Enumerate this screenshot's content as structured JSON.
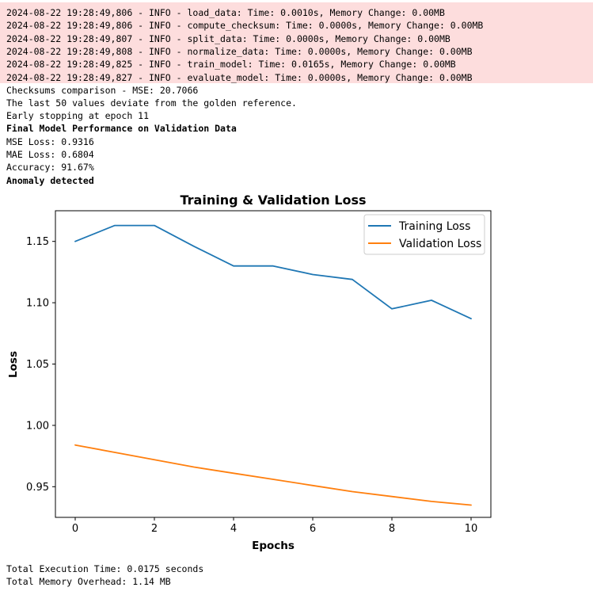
{
  "logs": [
    "2024-08-22 19:28:49,806 - INFO - load_data: Time: 0.0010s, Memory Change: 0.00MB",
    "2024-08-22 19:28:49,806 - INFO - compute_checksum: Time: 0.0000s, Memory Change: 0.00MB",
    "2024-08-22 19:28:49,807 - INFO - split_data: Time: 0.0000s, Memory Change: 0.00MB",
    "2024-08-22 19:28:49,808 - INFO - normalize_data: Time: 0.0000s, Memory Change: 0.00MB",
    "2024-08-22 19:28:49,825 - INFO - train_model: Time: 0.0165s, Memory Change: 0.00MB",
    "2024-08-22 19:28:49,827 - INFO - evaluate_model: Time: 0.0000s, Memory Change: 0.00MB"
  ],
  "output": {
    "checksums": "Checksums comparison - MSE: 20.7066",
    "deviation": "The last 50 values deviate from the golden reference.",
    "early_stop": "Early stopping at epoch 11",
    "perf_heading": "Final Model Performance on Validation Data",
    "mse": "MSE Loss: 0.9316",
    "mae": "MAE Loss: 0.6804",
    "accuracy": "Accuracy: 91.67%",
    "anomaly": "Anomaly detected"
  },
  "footer": {
    "exec_time": "Total Execution Time: 0.0175 seconds",
    "memory": "Total Memory Overhead: 1.14 MB"
  },
  "colors": {
    "log_background": "#fddddd",
    "training": "#1f77b4",
    "validation": "#ff7f0e"
  },
  "chart_data": {
    "type": "line",
    "title": "Training & Validation Loss",
    "xlabel": "Epochs",
    "ylabel": "Loss",
    "xlim": [
      -0.5,
      10.5
    ],
    "ylim": [
      0.925,
      1.175
    ],
    "xticks": [
      0,
      2,
      4,
      6,
      8,
      10
    ],
    "yticks": [
      0.95,
      1.0,
      1.05,
      1.1,
      1.15
    ],
    "ytick_labels": [
      "0.95",
      "1.00",
      "1.05",
      "1.10",
      "1.15"
    ],
    "legend_position": "top-right",
    "grid": false,
    "x": [
      0,
      1,
      2,
      3,
      4,
      5,
      6,
      7,
      8,
      9,
      10
    ],
    "series": [
      {
        "name": "Training Loss",
        "values": [
          1.15,
          1.163,
          1.163,
          1.146,
          1.13,
          1.13,
          1.123,
          1.119,
          1.095,
          1.102,
          1.087
        ]
      },
      {
        "name": "Validation Loss",
        "values": [
          0.984,
          0.978,
          0.972,
          0.966,
          0.961,
          0.956,
          0.951,
          0.946,
          0.942,
          0.938,
          0.935
        ]
      }
    ]
  }
}
